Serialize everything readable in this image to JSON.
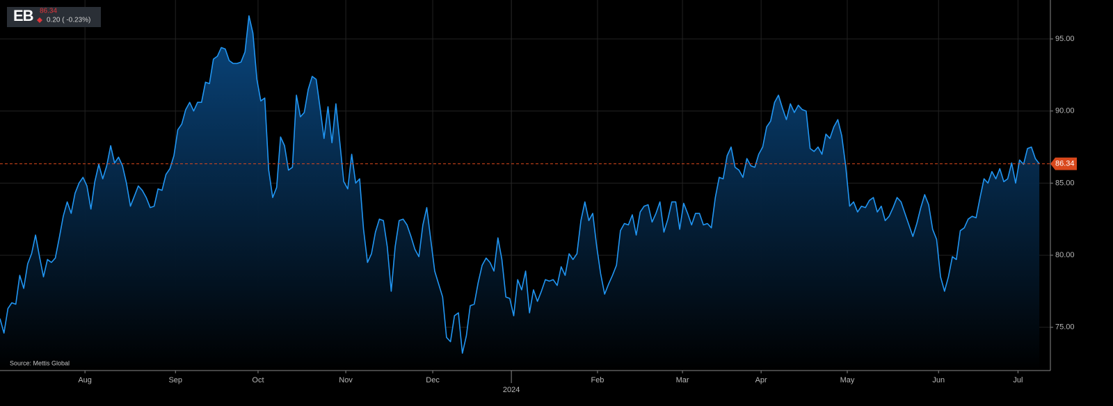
{
  "header": {
    "ticker": "EB",
    "price": "86.34",
    "change": "0.20 ( -0.23%)"
  },
  "chart_data": {
    "type": "area",
    "source": "Source: Mettis Global",
    "price_label": "86.34",
    "color": "#2196f3",
    "fill_color": "#0a4a85",
    "reference_color": "#d9481c",
    "grid": true,
    "ylim": [
      72,
      97.7
    ],
    "yticks": [
      {
        "value": 75,
        "label": "75.00"
      },
      {
        "value": 80,
        "label": "80.00"
      },
      {
        "value": 85,
        "label": "85.00"
      },
      {
        "value": 90,
        "label": "90.00"
      },
      {
        "value": 95,
        "label": "95.00"
      }
    ],
    "xlim": [
      0,
      265.8
    ],
    "xticks": [
      {
        "value": 21.5,
        "label": "Aug"
      },
      {
        "value": 44.4,
        "label": "Sep"
      },
      {
        "value": 65.3,
        "label": "Oct"
      },
      {
        "value": 87.5,
        "label": "Nov"
      },
      {
        "value": 109.5,
        "label": "Dec"
      },
      {
        "value": 151.2,
        "label": "Feb"
      },
      {
        "value": 172.7,
        "label": "Mar"
      },
      {
        "value": 192.6,
        "label": "Apr"
      },
      {
        "value": 214.4,
        "label": "May"
      },
      {
        "value": 237.5,
        "label": "Jun"
      },
      {
        "value": 257.6,
        "label": "Jul"
      }
    ],
    "year_ticks": [
      {
        "value": 129.4,
        "label": "2024"
      }
    ],
    "values": [
      75.6,
      74.6,
      76.3,
      76.7,
      76.6,
      78.6,
      77.7,
      79.4,
      80.1,
      81.4,
      79.9,
      78.5,
      79.7,
      79.5,
      79.8,
      81.2,
      82.7,
      83.7,
      82.9,
      84.3,
      85.0,
      85.4,
      84.8,
      83.2,
      85.1,
      86.3,
      85.3,
      86.2,
      87.6,
      86.4,
      86.8,
      86.2,
      85.0,
      83.4,
      84.1,
      84.8,
      84.5,
      84.0,
      83.3,
      83.4,
      84.6,
      84.5,
      85.6,
      86.0,
      86.9,
      88.7,
      89.1,
      90.1,
      90.6,
      90.0,
      90.6,
      90.6,
      92.0,
      91.9,
      93.6,
      93.8,
      94.4,
      94.3,
      93.5,
      93.3,
      93.3,
      93.4,
      94.1,
      96.6,
      95.4,
      92.2,
      90.7,
      90.9,
      85.9,
      84.0,
      84.7,
      88.2,
      87.6,
      85.9,
      86.1,
      91.1,
      89.6,
      89.9,
      91.5,
      92.4,
      92.2,
      90.2,
      88.1,
      90.3,
      87.8,
      90.5,
      87.8,
      85.1,
      84.6,
      87.0,
      85.0,
      85.3,
      81.8,
      79.5,
      80.1,
      81.6,
      82.5,
      82.4,
      80.6,
      77.5,
      80.6,
      82.4,
      82.5,
      82.1,
      81.3,
      80.4,
      79.9,
      82.1,
      83.3,
      81.1,
      78.9,
      78.0,
      77.1,
      74.3,
      74.0,
      75.8,
      76.0,
      73.2,
      74.4,
      76.5,
      76.6,
      78.1,
      79.3,
      79.8,
      79.5,
      78.9,
      81.2,
      79.7,
      77.1,
      77.0,
      75.8,
      78.3,
      77.6,
      78.9,
      76.0,
      77.6,
      76.8,
      77.5,
      78.3,
      78.2,
      78.3,
      77.9,
      79.2,
      78.6,
      80.1,
      79.7,
      80.1,
      82.4,
      83.7,
      82.4,
      82.9,
      80.6,
      78.7,
      77.3,
      78.0,
      78.6,
      79.3,
      81.7,
      82.2,
      82.1,
      82.8,
      81.4,
      83.0,
      83.4,
      83.5,
      82.3,
      82.9,
      83.7,
      81.6,
      82.5,
      83.7,
      83.7,
      81.8,
      83.6,
      82.9,
      82.1,
      82.9,
      82.9,
      82.1,
      82.2,
      81.9,
      84.0,
      85.4,
      85.3,
      86.9,
      87.5,
      86.1,
      85.9,
      85.4,
      86.7,
      86.2,
      86.1,
      87.0,
      87.5,
      88.9,
      89.3,
      90.6,
      91.1,
      90.2,
      89.4,
      90.5,
      89.9,
      90.4,
      90.1,
      90.0,
      87.4,
      87.2,
      87.5,
      87.0,
      88.4,
      88.1,
      88.9,
      89.4,
      88.3,
      86.2,
      83.4,
      83.7,
      83.0,
      83.4,
      83.3,
      83.8,
      84.0,
      83.0,
      83.4,
      82.4,
      82.7,
      83.3,
      84.0,
      83.7,
      82.9,
      82.1,
      81.3,
      82.2,
      83.3,
      84.2,
      83.5,
      81.8,
      81.1,
      78.5,
      77.5,
      78.5,
      79.9,
      79.7,
      81.7,
      81.9,
      82.5,
      82.7,
      82.6,
      84.0,
      85.3,
      85.0,
      85.8,
      85.3,
      86.0,
      85.1,
      85.3,
      86.4,
      85.0,
      86.6,
      86.3,
      87.4,
      87.5,
      86.7,
      86.34
    ]
  }
}
